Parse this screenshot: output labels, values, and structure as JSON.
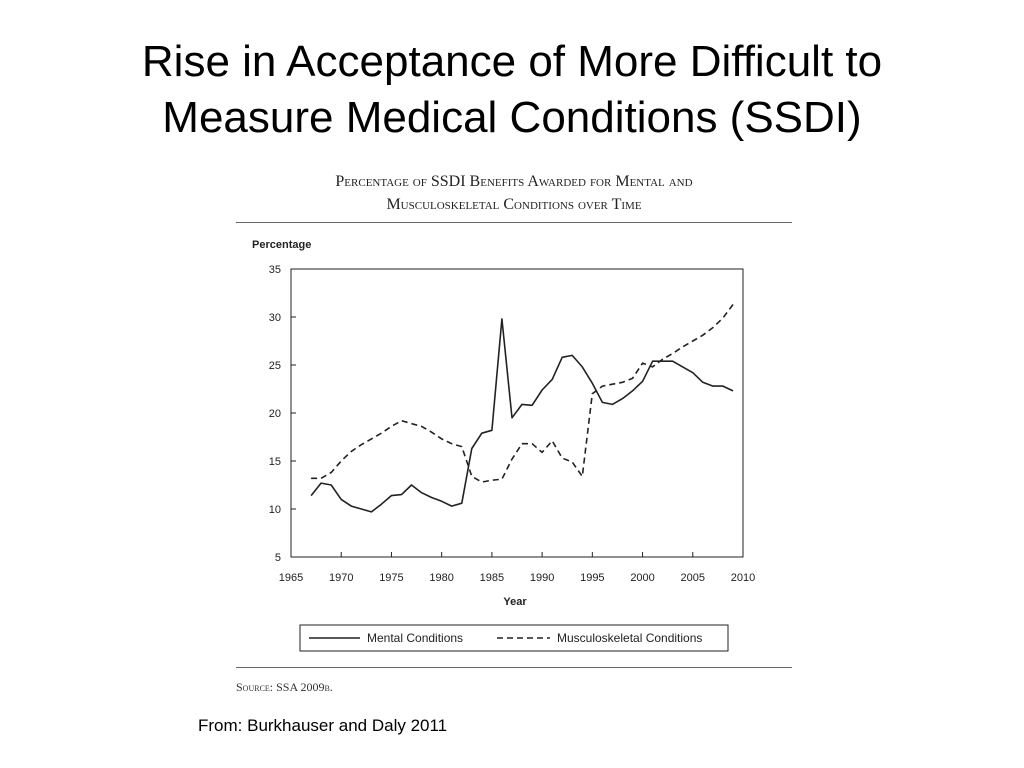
{
  "slide": {
    "title_line1": "Rise in Acceptance of More Difficult to",
    "title_line2": "Measure Medical Conditions (SSDI)",
    "from_text": "From:  Burkhauser and Daly 2011"
  },
  "figure": {
    "title_line1": "Percentage of SSDI Benefits Awarded for Mental and",
    "title_line2": "Musculoskeletal Conditions over Time",
    "source": "Source: SSA 2009b."
  },
  "chart_data": {
    "type": "line",
    "title": "Percentage of SSDI Benefits Awarded for Mental and Musculoskeletal Conditions over Time",
    "xlabel": "Year",
    "ylabel": "Percentage",
    "xlim": [
      1965,
      2010
    ],
    "ylim": [
      5,
      35
    ],
    "xticks": [
      1965,
      1970,
      1975,
      1980,
      1985,
      1990,
      1995,
      2000,
      2005,
      2010
    ],
    "yticks": [
      5,
      10,
      15,
      20,
      25,
      30,
      35
    ],
    "grid": false,
    "legend_position": "bottom",
    "series": [
      {
        "name": "Mental Conditions",
        "style": "solid",
        "color": "#222222",
        "x": [
          1967,
          1968,
          1969,
          1970,
          1971,
          1972,
          1973,
          1974,
          1975,
          1976,
          1977,
          1978,
          1979,
          1980,
          1981,
          1982,
          1983,
          1984,
          1985,
          1986,
          1987,
          1988,
          1989,
          1990,
          1991,
          1992,
          1993,
          1994,
          1995,
          1996,
          1997,
          1998,
          1999,
          2000,
          2001,
          2002,
          2003,
          2004,
          2005,
          2006,
          2007,
          2008,
          2009
        ],
        "y": [
          11.4,
          12.7,
          12.5,
          11.0,
          10.3,
          10.0,
          9.7,
          10.5,
          11.4,
          11.5,
          12.5,
          11.7,
          11.2,
          10.8,
          10.3,
          10.6,
          16.3,
          17.9,
          18.2,
          29.8,
          19.5,
          20.9,
          20.8,
          22.4,
          23.5,
          25.8,
          26.0,
          24.8,
          23.1,
          21.1,
          20.9,
          21.5,
          22.3,
          23.3,
          25.4,
          25.4,
          25.4,
          24.8,
          24.2,
          23.2,
          22.8,
          22.8,
          22.3
        ]
      },
      {
        "name": "Musculoskeletal Conditions",
        "style": "dashed",
        "color": "#222222",
        "x": [
          1967,
          1968,
          1969,
          1970,
          1971,
          1972,
          1973,
          1974,
          1975,
          1976,
          1977,
          1978,
          1979,
          1980,
          1981,
          1982,
          1983,
          1984,
          1985,
          1986,
          1987,
          1988,
          1989,
          1990,
          1991,
          1992,
          1993,
          1994,
          1995,
          1996,
          1997,
          1998,
          1999,
          2000,
          2001,
          2002,
          2003,
          2004,
          2005,
          2006,
          2007,
          2008,
          2009
        ],
        "y": [
          13.2,
          13.2,
          13.8,
          15.0,
          16.0,
          16.7,
          17.3,
          17.9,
          18.6,
          19.2,
          18.9,
          18.6,
          18.0,
          17.3,
          16.8,
          16.5,
          13.4,
          12.8,
          13.0,
          13.1,
          15.2,
          16.8,
          16.8,
          15.9,
          17.1,
          15.3,
          14.9,
          13.4,
          22.0,
          22.8,
          23.0,
          23.2,
          23.6,
          25.2,
          24.8,
          25.6,
          26.2,
          26.9,
          27.5,
          28.1,
          28.9,
          29.9,
          31.3
        ]
      }
    ]
  }
}
